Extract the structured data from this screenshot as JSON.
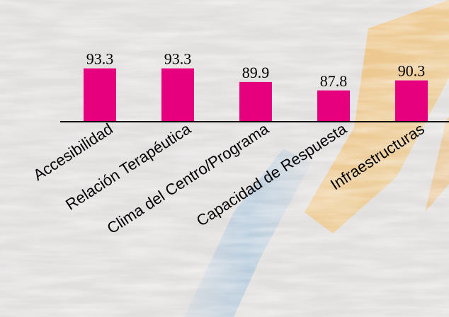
{
  "chart_data": {
    "type": "bar",
    "categories": [
      "Accesibilidad",
      "Relación Terapéutica",
      "Clima del Centro/Programa",
      "Capacidad de Respuesta",
      "Infraestructuras"
    ],
    "values": [
      93.3,
      93.3,
      89.9,
      87.8,
      90.3
    ],
    "value_labels": [
      "93.3",
      "93.3",
      "89.9",
      "87.8",
      "90.3"
    ],
    "title": "",
    "xlabel": "",
    "ylabel": "",
    "ylim": [
      80,
      95
    ],
    "grid": false,
    "legend": "none",
    "bar_color": "#e6007e"
  }
}
